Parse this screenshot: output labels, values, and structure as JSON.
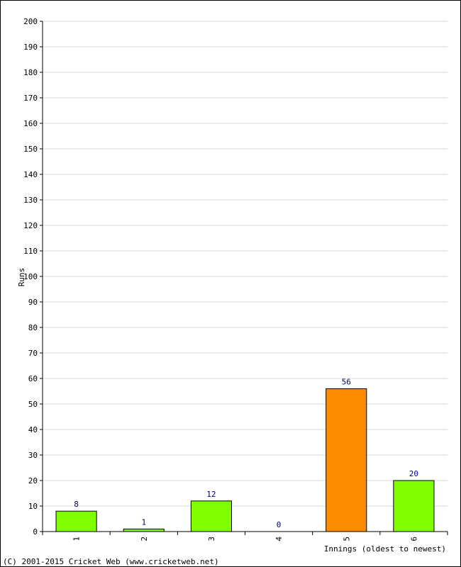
{
  "chart_data": {
    "type": "bar",
    "title": "",
    "xlabel": "Innings (oldest to newest)",
    "ylabel": "Runs",
    "ylim": [
      0,
      200
    ],
    "ytick_step": 10,
    "grid": true,
    "categories": [
      "1",
      "2",
      "3",
      "4",
      "5",
      "6"
    ],
    "values": [
      8,
      1,
      12,
      0,
      56,
      20
    ],
    "data_labels": [
      "8",
      "1",
      "12",
      "0",
      "56",
      "20"
    ],
    "bar_colors": [
      "#80ff00",
      "#80ff00",
      "#80ff00",
      "#80ff00",
      "#ff8c00",
      "#80ff00"
    ]
  },
  "footer": {
    "copyright": "(C) 2001-2015 Cricket Web (www.cricketweb.net)"
  }
}
